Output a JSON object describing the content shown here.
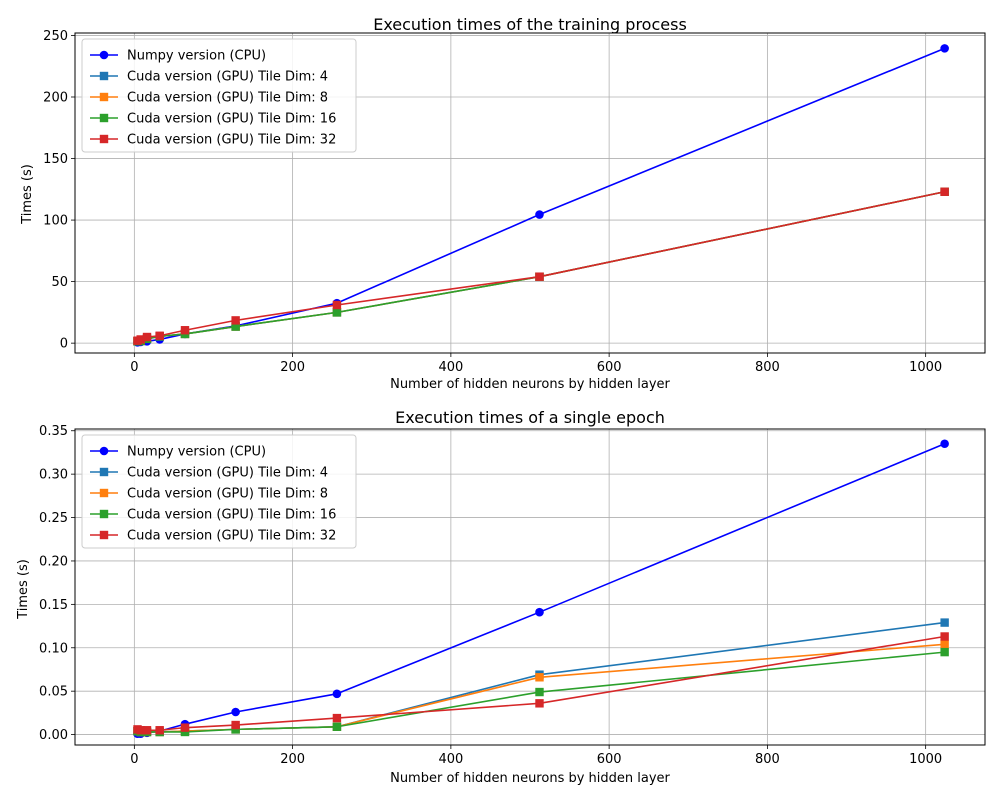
{
  "chart_data": [
    {
      "type": "line",
      "title": "Execution times of the training process",
      "xlabel": "Number of hidden neurons by hidden layer",
      "ylabel": "Times (s)",
      "xlim": [
        -75,
        1075
      ],
      "ylim": [
        -8,
        252
      ],
      "xticks": [
        0,
        200,
        400,
        600,
        800,
        1000
      ],
      "yticks": [
        0,
        50,
        100,
        150,
        200,
        250
      ],
      "tick_decimals": 0,
      "grid": true,
      "legend_position": "upper-left",
      "x": [
        4,
        8,
        16,
        32,
        64,
        128,
        256,
        512,
        1024
      ],
      "series": [
        {
          "name": "Numpy version (CPU)",
          "marker": "circle",
          "color": "#0000ff",
          "values": [
            0.7,
            1.0,
            1.5,
            3.0,
            7.5,
            14.0,
            32.5,
            104.5,
            239.5
          ]
        },
        {
          "name": "Cuda version (GPU) Tile Dim: 4",
          "marker": "square",
          "color": "#1f77b4",
          "values": [
            1.5,
            1.8,
            3.5,
            5.5,
            7.5,
            13.5,
            25.0,
            54.0,
            123.0
          ]
        },
        {
          "name": "Cuda version (GPU) Tile Dim: 8",
          "marker": "square",
          "color": "#ff7f0e",
          "values": [
            1.5,
            1.8,
            3.5,
            5.5,
            7.5,
            13.5,
            25.0,
            54.0,
            123.0
          ]
        },
        {
          "name": "Cuda version (GPU) Tile Dim: 16",
          "marker": "square",
          "color": "#2ca02c",
          "values": [
            1.5,
            1.8,
            3.5,
            5.5,
            7.5,
            13.5,
            25.0,
            54.0,
            123.0
          ]
        },
        {
          "name": "Cuda version (GPU) Tile Dim: 32",
          "marker": "square",
          "color": "#d62728",
          "values": [
            2.0,
            3.0,
            5.0,
            6.0,
            10.5,
            18.5,
            31.0,
            54.0,
            123.0
          ]
        }
      ]
    },
    {
      "type": "line",
      "title": "Execution times of a single epoch",
      "xlabel": "Number of hidden neurons by hidden layer",
      "ylabel": "Times (s)",
      "xlim": [
        -75,
        1075
      ],
      "ylim": [
        -0.012,
        0.352
      ],
      "xticks": [
        0,
        200,
        400,
        600,
        800,
        1000
      ],
      "yticks": [
        0.0,
        0.05,
        0.1,
        0.15,
        0.2,
        0.25,
        0.3,
        0.35
      ],
      "tick_decimals": 2,
      "grid": true,
      "legend_position": "upper-left",
      "x": [
        4,
        8,
        16,
        32,
        64,
        128,
        256,
        512,
        1024
      ],
      "series": [
        {
          "name": "Numpy version (CPU)",
          "marker": "circle",
          "color": "#0000ff",
          "values": [
            0.001,
            0.001,
            0.002,
            0.004,
            0.012,
            0.026,
            0.047,
            0.141,
            0.335
          ]
        },
        {
          "name": "Cuda version (GPU) Tile Dim: 4",
          "marker": "square",
          "color": "#1f77b4",
          "values": [
            0.004,
            0.003,
            0.003,
            0.003,
            0.004,
            0.006,
            0.009,
            0.069,
            0.129
          ]
        },
        {
          "name": "Cuda version (GPU) Tile Dim: 8",
          "marker": "square",
          "color": "#ff7f0e",
          "values": [
            0.004,
            0.003,
            0.003,
            0.003,
            0.004,
            0.006,
            0.009,
            0.066,
            0.104
          ]
        },
        {
          "name": "Cuda version (GPU) Tile Dim: 16",
          "marker": "square",
          "color": "#2ca02c",
          "values": [
            0.004,
            0.003,
            0.003,
            0.003,
            0.003,
            0.006,
            0.009,
            0.049,
            0.095
          ]
        },
        {
          "name": "Cuda version (GPU) Tile Dim: 32",
          "marker": "square",
          "color": "#d62728",
          "values": [
            0.006,
            0.005,
            0.005,
            0.005,
            0.008,
            0.011,
            0.019,
            0.036,
            0.113
          ]
        }
      ]
    }
  ]
}
